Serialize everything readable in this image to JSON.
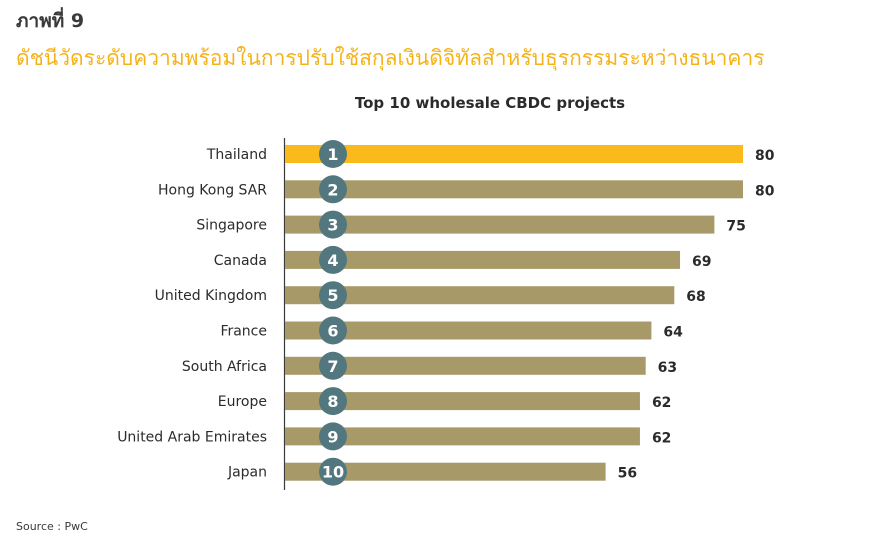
{
  "figure_label": "ภาพที่ 9",
  "figure_title": "ดัชนีวัดระดับความพร้อมในการปรับใช้สกุลเงินดิจิทัลสำหรับธุรกรรมระหว่างธนาคาร",
  "source": "Source : PwC",
  "colors": {
    "highlight": "#fbba1c",
    "bar": "#a89968",
    "badge": "#53777e",
    "title_accent": "#f5b31a"
  },
  "chart_data": {
    "type": "bar",
    "orientation": "horizontal",
    "title": "Top 10 wholesale CBDC projects",
    "categories": [
      "Thailand",
      "Hong Kong SAR",
      "Singapore",
      "Canada",
      "United Kingdom",
      "France",
      "South Africa",
      "Europe",
      "United Arab Emirates",
      "Japan"
    ],
    "ranks": [
      "1",
      "2",
      "3",
      "4",
      "5",
      "6",
      "7",
      "8",
      "9",
      "10"
    ],
    "values": [
      80,
      80,
      75,
      69,
      68,
      64,
      63,
      62,
      62,
      56
    ],
    "xlim": [
      0,
      80
    ],
    "highlight_category": "Thailand",
    "grid": false
  }
}
